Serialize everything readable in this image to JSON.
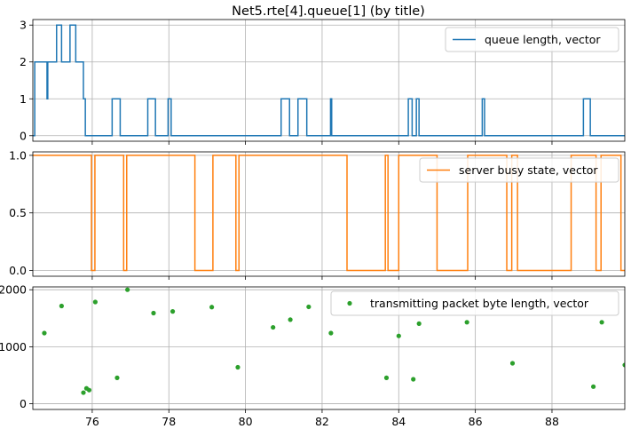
{
  "title": "Net5.rte[4].queue[1] (by title)",
  "x_ticks": [
    76,
    78,
    80,
    82,
    84,
    86,
    88
  ],
  "xlim": [
    74.45,
    89.9
  ],
  "colors": {
    "queue": "#1f77b4",
    "busy": "#ff7f0e",
    "bytes": "#2ca02c",
    "grid": "#b0b0b0"
  },
  "chart_data": [
    {
      "type": "line",
      "step": "post",
      "series": [
        {
          "name": "queue length, vector"
        }
      ],
      "legend": "top-right",
      "ylim": [
        -0.15,
        3.15
      ],
      "y_ticks": [
        0,
        1,
        2,
        3
      ],
      "grid": true,
      "x": [
        74.45,
        74.5,
        74.82,
        74.84,
        74.86,
        75.07,
        75.2,
        75.42,
        75.57,
        75.77,
        75.82,
        75.9,
        76.52,
        76.73,
        77.45,
        77.65,
        77.98,
        78.06,
        80.93,
        81.15,
        81.37,
        81.6,
        82.22,
        82.25,
        84.25,
        84.35,
        84.46,
        84.53,
        86.18,
        86.24,
        88.82,
        89.0,
        89.9
      ],
      "values": [
        0,
        2,
        1,
        2,
        2,
        3,
        2,
        3,
        2,
        1,
        0,
        0,
        1,
        0,
        1,
        0,
        1,
        0,
        1,
        0,
        1,
        0,
        1,
        0,
        1,
        0,
        1,
        0,
        1,
        0,
        1,
        0,
        0
      ]
    },
    {
      "type": "line",
      "step": "post",
      "series": [
        {
          "name": "server busy state, vector"
        }
      ],
      "legend": "top-right",
      "ylim": [
        -0.05,
        1.03
      ],
      "y_ticks": [
        0.0,
        0.5,
        1.0
      ],
      "grid": true,
      "x": [
        74.45,
        75.98,
        76.07,
        76.82,
        76.9,
        78.68,
        79.15,
        79.75,
        79.83,
        80.72,
        82.65,
        83.65,
        83.72,
        84.0,
        84.35,
        85.0,
        85.8,
        86.82,
        86.95,
        87.1,
        88.5,
        89.15,
        89.28,
        89.8,
        89.9
      ],
      "values": [
        1,
        0,
        1,
        0,
        1,
        0,
        1,
        0,
        1,
        1,
        0,
        1,
        0,
        1,
        1,
        0,
        1,
        0,
        1,
        0,
        1,
        0,
        1,
        0,
        0
      ]
    },
    {
      "type": "scatter",
      "series": [
        {
          "name": "transmitting packet byte length, vector"
        }
      ],
      "legend": "top-right",
      "ylim": [
        -100,
        2050
      ],
      "y_ticks": [
        0,
        1000,
        2000
      ],
      "y_tick_labels": [
        "0",
        "1000",
        "2000"
      ],
      "grid": true,
      "x": [
        74.75,
        75.2,
        75.77,
        75.85,
        75.92,
        76.08,
        76.65,
        76.92,
        77.6,
        78.1,
        79.12,
        79.8,
        80.72,
        81.17,
        81.65,
        82.23,
        83.68,
        84.0,
        84.38,
        84.53,
        85.78,
        86.97,
        89.08,
        89.3,
        89.9
      ],
      "values": [
        1240,
        1715,
        195,
        270,
        240,
        1785,
        455,
        2000,
        1590,
        1620,
        1695,
        640,
        1340,
        1475,
        1700,
        1240,
        455,
        1190,
        430,
        1405,
        1430,
        710,
        300,
        1430,
        680
      ]
    }
  ]
}
